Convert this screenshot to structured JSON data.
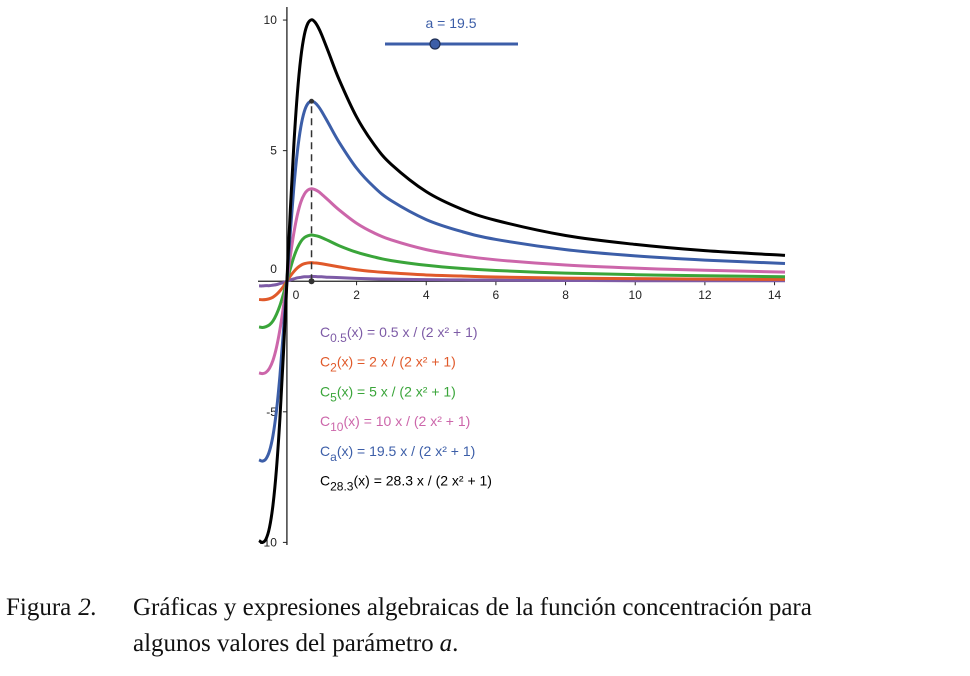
{
  "chart_data": {
    "type": "line",
    "slider": {
      "label": "a = 19.5",
      "color": "#3c5ea8"
    },
    "x": [
      -0.8,
      -0.7,
      -0.6,
      -0.5,
      -0.4,
      -0.3,
      -0.2,
      -0.1,
      0,
      0.1,
      0.2,
      0.3,
      0.4,
      0.5,
      0.6,
      0.707,
      0.8,
      0.9,
      1,
      1.2,
      1.5,
      2,
      2.5,
      3,
      4,
      5,
      6,
      8,
      10,
      12,
      14.3
    ],
    "series": [
      {
        "name": "C",
        "subscript": "0.5",
        "formula": "(x) = 0.5 x / (2 x² + 1)",
        "color": "#7d5ba6",
        "values": [
          -0.18,
          -0.18,
          -0.17,
          -0.17,
          -0.15,
          -0.13,
          -0.09,
          -0.05,
          0,
          0.05,
          0.09,
          0.13,
          0.15,
          0.17,
          0.17,
          0.18,
          0.18,
          0.17,
          0.17,
          0.15,
          0.14,
          0.11,
          0.09,
          0.08,
          0.06,
          0.05,
          0.04,
          0.03,
          0.02,
          0.02,
          0.02
        ]
      },
      {
        "name": "C",
        "subscript": "2",
        "formula": "(x) = 2 x / (2 x² + 1)",
        "color": "#e0592a",
        "values": [
          -0.7,
          -0.71,
          -0.7,
          -0.67,
          -0.61,
          -0.51,
          -0.37,
          -0.2,
          0,
          0.2,
          0.37,
          0.51,
          0.61,
          0.67,
          0.7,
          0.71,
          0.7,
          0.69,
          0.67,
          0.62,
          0.55,
          0.44,
          0.37,
          0.32,
          0.24,
          0.2,
          0.16,
          0.12,
          0.1,
          0.08,
          0.07
        ]
      },
      {
        "name": "C",
        "subscript": "5",
        "formula": "(x) = 5 x / (2 x² + 1)",
        "color": "#3aa53a",
        "values": [
          -1.75,
          -1.77,
          -1.74,
          -1.67,
          -1.52,
          -1.27,
          -0.93,
          -0.49,
          0,
          0.49,
          0.93,
          1.27,
          1.52,
          1.67,
          1.74,
          1.77,
          1.75,
          1.72,
          1.67,
          1.55,
          1.36,
          1.11,
          0.93,
          0.79,
          0.61,
          0.49,
          0.41,
          0.31,
          0.25,
          0.21,
          0.17
        ]
      },
      {
        "name": "C",
        "subscript": "10",
        "formula": "(x) = 10 x / (2 x² + 1)",
        "color": "#cc66aa",
        "values": [
          -3.51,
          -3.54,
          -3.49,
          -3.33,
          -3.03,
          -2.54,
          -1.85,
          -0.98,
          0,
          0.98,
          1.85,
          2.54,
          3.03,
          3.33,
          3.49,
          3.54,
          3.51,
          3.44,
          3.33,
          3.09,
          2.73,
          2.22,
          1.85,
          1.58,
          1.21,
          0.98,
          0.82,
          0.62,
          0.5,
          0.42,
          0.35
        ]
      },
      {
        "name": "C",
        "subscript": "a",
        "formula": "(x) = 19.5 x / (2 x² + 1)",
        "color": "#3c5ea8",
        "values": [
          -6.84,
          -6.89,
          -6.8,
          -6.5,
          -5.91,
          -4.96,
          -3.61,
          -1.91,
          0,
          1.91,
          3.61,
          4.96,
          5.91,
          6.5,
          6.8,
          6.89,
          6.84,
          6.7,
          6.5,
          6.03,
          5.32,
          4.33,
          3.61,
          3.08,
          2.36,
          1.91,
          1.6,
          1.21,
          0.97,
          0.81,
          0.68
        ]
      },
      {
        "name": "C",
        "subscript": "28.3",
        "formula": "(x) = 28.3 x / (2 x² + 1)",
        "color": "#000000",
        "values": [
          -9.93,
          -10.0,
          -9.87,
          -9.43,
          -8.57,
          -7.19,
          -5.24,
          -2.77,
          0,
          2.77,
          5.24,
          7.19,
          8.57,
          9.43,
          9.87,
          10.01,
          9.93,
          9.72,
          9.43,
          8.75,
          7.72,
          6.29,
          5.24,
          4.47,
          3.43,
          2.77,
          2.33,
          1.75,
          1.41,
          1.17,
          0.99
        ]
      }
    ],
    "xlim": [
      -0.83,
      14.3
    ],
    "ylim": [
      -10.1,
      10.5
    ],
    "xticks": [
      0,
      2,
      4,
      6,
      8,
      10,
      12,
      14
    ],
    "yticks": [
      -10,
      -5,
      0,
      5,
      10
    ],
    "grid": false
  },
  "caption": {
    "label": "Figura",
    "number": "2.",
    "line1": "Gráficas y expresiones algebraicas de la función concentración para",
    "line2": "algunos valores del parámetro",
    "variable": "a",
    "end": "."
  }
}
